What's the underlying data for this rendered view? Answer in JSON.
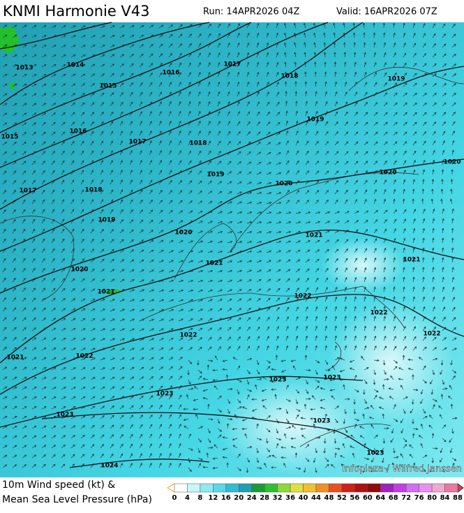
{
  "header": {
    "title": "KNMI Harmonie V43",
    "run": "Run: 14APR2026 04Z",
    "valid": "Valid: 16APR2026 07Z"
  },
  "map": {
    "isobar_labels": [
      1013,
      1014,
      1015,
      1016,
      1017,
      1018,
      1019,
      1015,
      1016,
      1017,
      1018,
      1019,
      1017,
      1018,
      1019,
      1020,
      1020,
      1020,
      1019,
      1020,
      1021,
      1021,
      1020,
      1021,
      1021,
      1022,
      1022,
      1022,
      1022,
      1021,
      1022,
      1023,
      1023,
      1023,
      1023,
      1023,
      1023,
      1024
    ],
    "credit": "Infoplaza / Wilfred Janssen"
  },
  "legend": {
    "line1": "10m Wind speed (kt) &",
    "line2": "Mean Sea Level Pressure (hPa)",
    "colorbar_ticks": [
      0,
      4,
      8,
      12,
      16,
      20,
      24,
      28,
      32,
      36,
      40,
      44,
      48,
      52,
      56,
      60,
      64,
      68,
      72,
      76,
      80,
      84,
      88
    ]
  }
}
